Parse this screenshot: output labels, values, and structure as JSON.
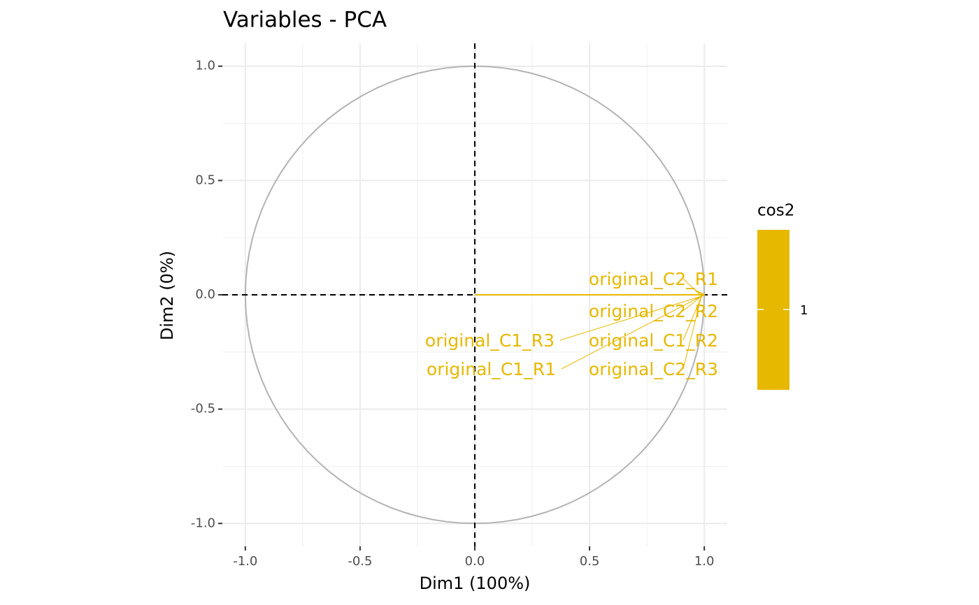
{
  "chart_data": {
    "type": "pca-variables",
    "title": "Variables - PCA",
    "x_label": "Dim1 (100%)",
    "y_label": "Dim2 (0%)",
    "variables": [
      "original_C2_R1",
      "original_C2_R2",
      "original_C1_R3",
      "original_C1_R2",
      "original_C1_R1",
      "original_C2_R3"
    ],
    "x": [
      1,
      1,
      1,
      1,
      1,
      1
    ],
    "y": [
      0,
      0,
      0,
      0,
      0,
      0
    ],
    "cos2": [
      1,
      1,
      1,
      1,
      1,
      1
    ],
    "color": "#E7B800",
    "circle_color": "#b3b3b3",
    "xlim": [
      -1.1,
      1.1
    ],
    "ylim": [
      -1.1,
      1.1
    ],
    "xticks": [
      {
        "value": -1,
        "label": "-1.0"
      },
      {
        "value": -0.5,
        "label": "-0.5"
      },
      {
        "value": 0,
        "label": "0.0"
      },
      0.5,
      {
        "value": 1,
        "label": "1.0"
      }
    ],
    "yticks": [
      {
        "value": -1,
        "label": "-1.0"
      },
      {
        "value": -0.5,
        "label": "-0.5"
      },
      {
        "value": 0,
        "label": "0.0"
      },
      0.5,
      {
        "value": 1,
        "label": "1.0"
      }
    ],
    "grid": true,
    "legend": {
      "title": "cos2",
      "ticks": [
        1
      ]
    }
  }
}
